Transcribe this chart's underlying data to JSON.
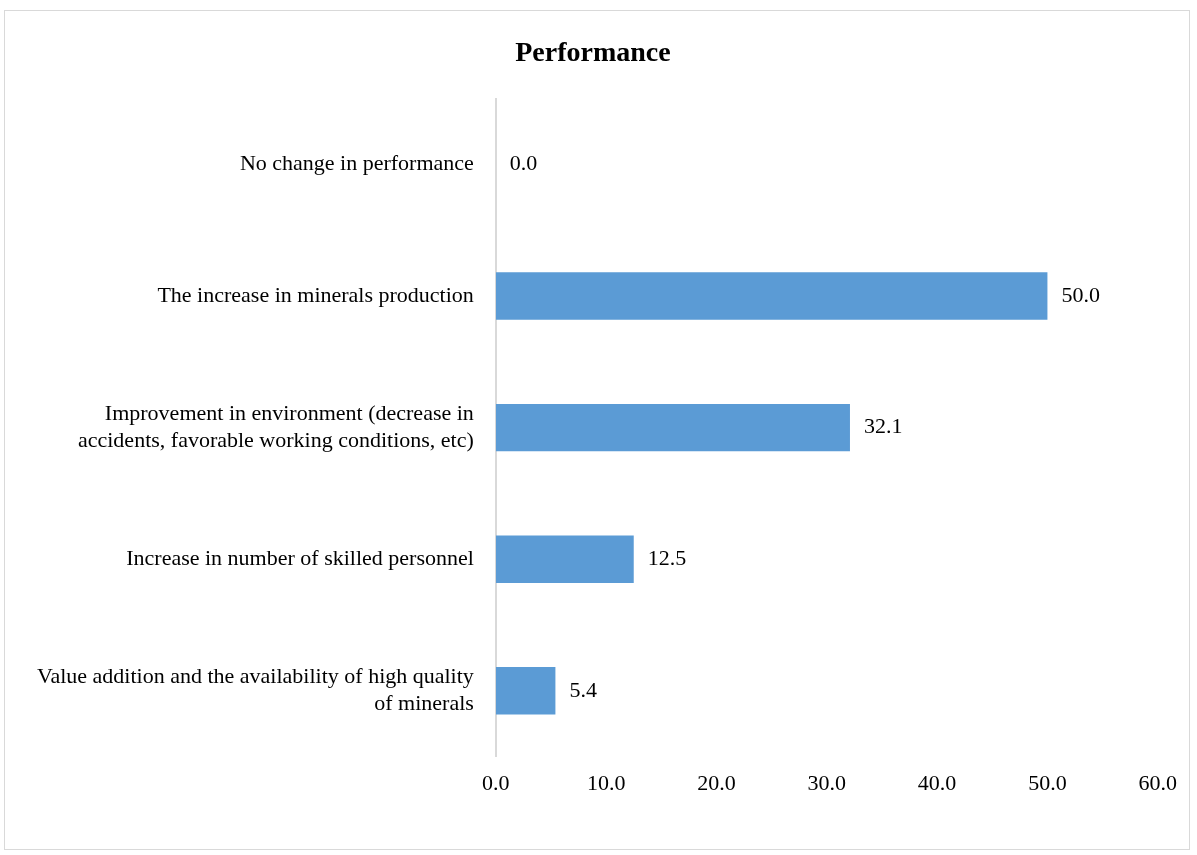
{
  "chart_data": {
    "type": "bar",
    "orientation": "horizontal",
    "title": "Performance",
    "categories": [
      "No change in performance",
      "The increase in minerals production",
      "Improvement in environment (decrease in accidents, favorable working conditions, etc)",
      "Increase in number of skilled personnel",
      "Value addition and the availability of high quality of minerals"
    ],
    "values": [
      0.0,
      50.0,
      32.1,
      12.5,
      5.4
    ],
    "value_labels": [
      "0.0",
      "50.0",
      "32.1",
      "12.5",
      "5.4"
    ],
    "color": "#5b9bd5",
    "xlim": [
      0,
      60
    ],
    "xticks": [
      {
        "value": 0,
        "label": "0.0"
      },
      {
        "value": 10,
        "label": "10.0"
      },
      {
        "value": 20,
        "label": "20.0"
      },
      {
        "value": 30,
        "label": "30.0"
      },
      {
        "value": 40,
        "label": "40.0"
      },
      {
        "value": 50,
        "label": "50.0"
      },
      {
        "value": 60,
        "label": "60.0"
      }
    ],
    "grid": false,
    "legend": false
  }
}
